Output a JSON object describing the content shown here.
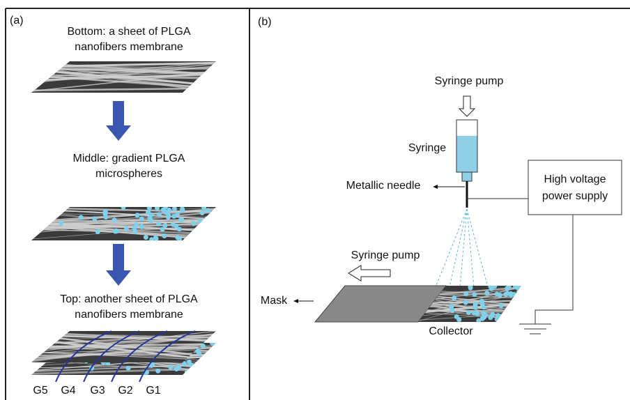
{
  "panel_a": {
    "label": "(a)",
    "steps": [
      {
        "lines": [
          "Bottom: a sheet of PLGA",
          "nanofibers membrane"
        ]
      },
      {
        "lines": [
          "Middle: gradient PLGA",
          "microspheres"
        ]
      },
      {
        "lines": [
          "Top: another sheet of PLGA",
          "nanofibers membrane"
        ]
      }
    ],
    "grades": [
      "G5",
      "G4",
      "G3",
      "G2",
      "G1"
    ]
  },
  "panel_b": {
    "label": "(b)",
    "syringe_pump_top": "Syringe pump",
    "syringe": "Syringe",
    "needle": "Metallic needle",
    "power_supply": [
      "High voltage",
      "power supply"
    ],
    "syringe_pump_bottom": "Syringe pump",
    "mask": "Mask",
    "collector": "Collector"
  }
}
